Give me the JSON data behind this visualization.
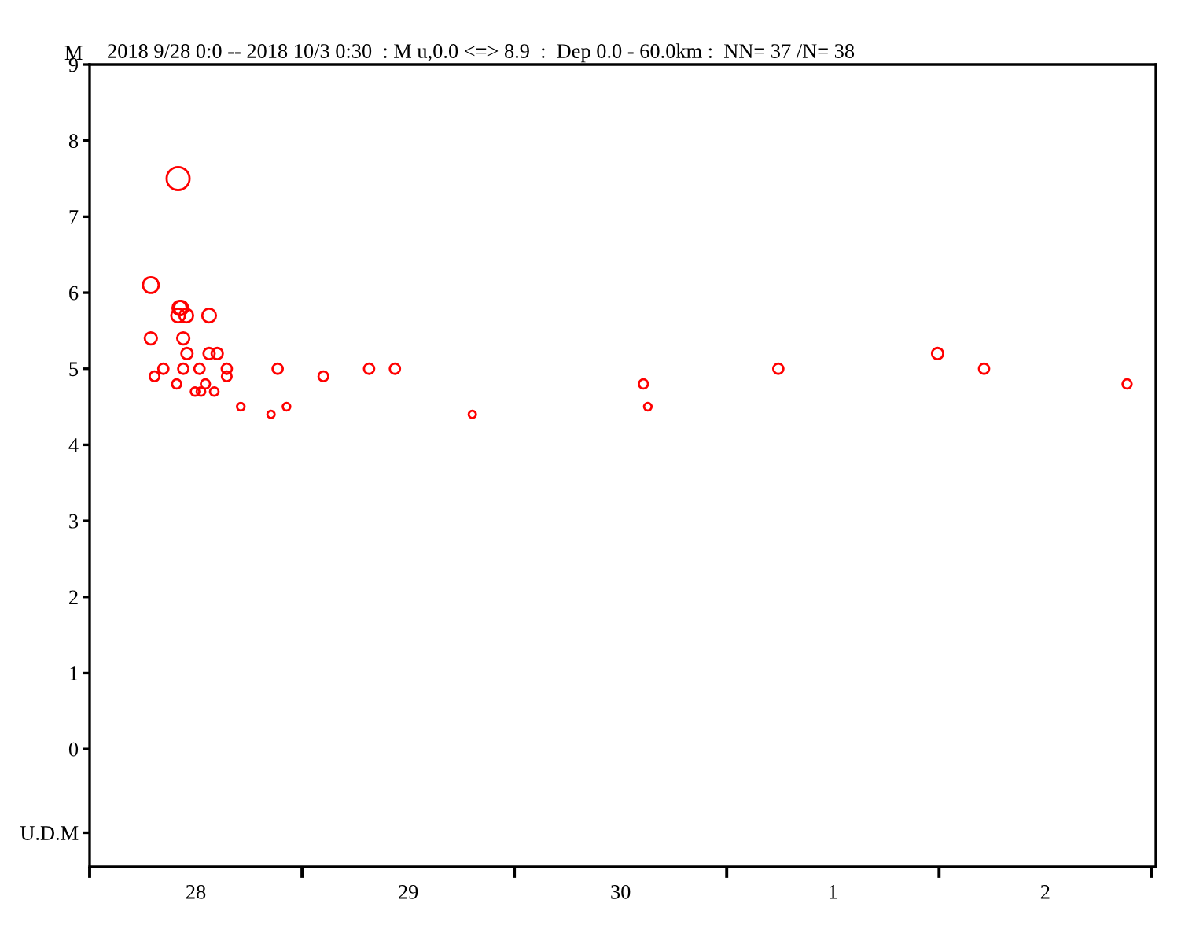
{
  "chart_data": {
    "type": "bubble",
    "title": "2018 9/28 0:0 -- 2018 10/3 0:30  : M u,0.0 <=> 8.9  :  Dep 0.0 - 60.0km :  NN= 37 /N= 38",
    "ylabel": "M",
    "x": [
      "2018-09-28T06:55",
      "2018-09-28T06:55",
      "2018-09-28T07:20",
      "2018-09-28T08:20",
      "2018-09-28T09:50",
      "2018-09-28T10:00",
      "2018-09-28T10:00",
      "2018-09-28T10:10",
      "2018-09-28T10:20",
      "2018-09-28T10:35",
      "2018-09-28T10:35",
      "2018-09-28T10:55",
      "2018-09-28T11:00",
      "2018-09-28T11:55",
      "2018-09-28T12:25",
      "2018-09-28T12:35",
      "2018-09-28T13:05",
      "2018-09-28T13:30",
      "2018-09-28T13:30",
      "2018-09-28T14:05",
      "2018-09-28T14:25",
      "2018-09-28T15:30",
      "2018-09-28T15:30",
      "2018-09-28T17:05",
      "2018-09-28T20:30",
      "2018-09-28T21:15",
      "2018-09-28T22:15",
      "2018-09-29T02:25",
      "2018-09-29T07:35",
      "2018-09-29T10:30",
      "2018-09-29T19:15",
      "2018-09-30T14:35",
      "2018-09-30T15:05",
      "2018-10-01T05:50",
      "2018-10-01T23:50",
      "2018-10-02T05:05",
      "2018-10-02T21:15"
    ],
    "values": [
      6.1,
      5.4,
      4.9,
      5.0,
      4.8,
      7.5,
      5.7,
      5.8,
      5.8,
      5.4,
      5.0,
      5.7,
      5.2,
      4.7,
      5.0,
      4.7,
      4.8,
      5.7,
      5.2,
      4.7,
      5.2,
      5.0,
      4.9,
      4.5,
      4.4,
      5.0,
      4.5,
      4.9,
      5.0,
      5.0,
      4.4,
      4.8,
      4.5,
      5.0,
      5.2,
      5.0,
      4.8
    ],
    "sizes": [
      0.47,
      0.28,
      0.18,
      0.2,
      0.16,
      1,
      0.36,
      0.39,
      0.39,
      0.28,
      0.2,
      0.36,
      0.24,
      0.14,
      0.2,
      0.14,
      0.16,
      0.36,
      0.24,
      0.14,
      0.24,
      0.2,
      0.18,
      0.11,
      0.1,
      0.2,
      0.11,
      0.18,
      0.2,
      0.2,
      0.1,
      0.16,
      0.11,
      0.2,
      0.24,
      0.2,
      0.16
    ],
    "color": "#ff0000",
    "marker": "circle",
    "xlim": [
      "2018-09-28T00:00",
      "2018-10-03T00:30"
    ],
    "xticks": [
      {
        "value": "2018-09-28T00:00",
        "label": null
      },
      {
        "value": "2018-09-28T12:00",
        "label": "28"
      },
      {
        "value": "2018-09-29T00:00",
        "label": null
      },
      {
        "value": "2018-09-29T12:00",
        "label": "29"
      },
      {
        "value": "2018-09-30T00:00",
        "label": null
      },
      {
        "value": "2018-09-30T12:00",
        "label": "30"
      },
      {
        "value": "2018-10-01T00:00",
        "label": null
      },
      {
        "value": "2018-10-01T12:00",
        "label": "1"
      },
      {
        "value": "2018-10-02T00:00",
        "label": null
      },
      {
        "value": "2018-10-02T12:00",
        "label": "2"
      },
      {
        "value": "2018-10-03T00:00",
        "label": null
      }
    ],
    "ylim": [
      -1.55,
      9
    ],
    "yticks": [
      {
        "value": -1.1,
        "label": "U.D.M"
      },
      0,
      1,
      2,
      3,
      4,
      5,
      6,
      7,
      8,
      9
    ]
  }
}
